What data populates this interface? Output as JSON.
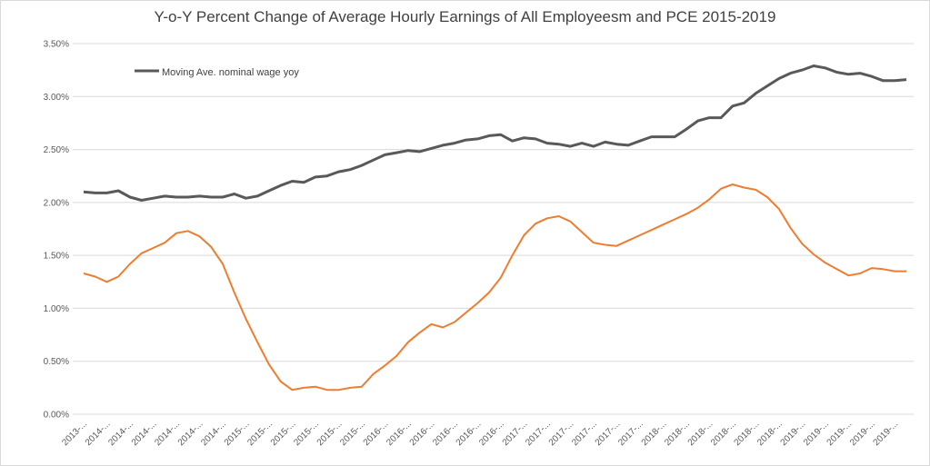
{
  "chart_data": {
    "type": "line",
    "title": "Y-o-Y Percent Change of Average Hourly Earnings of All Employeesm and PCE 2015-2019",
    "xlabel": "",
    "ylabel": "",
    "ylim": [
      0,
      3.5
    ],
    "y_ticks": [
      "0.00%",
      "0.50%",
      "1.00%",
      "1.50%",
      "2.00%",
      "2.50%",
      "3.00%",
      "3.50%"
    ],
    "y_tick_values": [
      0,
      0.5,
      1,
      1.5,
      2,
      2.5,
      3,
      3.5
    ],
    "grid": "horizontal",
    "legend_position": "top-left",
    "x_tick_labels": [
      "2013-...",
      "2014-...",
      "2014-...",
      "2014-...",
      "2014-...",
      "2014-...",
      "2014-...",
      "2015-...",
      "2015-...",
      "2015-...",
      "2015-...",
      "2015-...",
      "2015-...",
      "2016-...",
      "2016-...",
      "2016-...",
      "2016-...",
      "2016-...",
      "2016-...",
      "2017-...",
      "2017-...",
      "2017-...",
      "2017-...",
      "2017-...",
      "2017-...",
      "2018-...",
      "2018-...",
      "2018-...",
      "2018-...",
      "2018-...",
      "2018-...",
      "2019-...",
      "2019-...",
      "2019-...",
      "2019-...",
      "2019-..."
    ],
    "series": [
      {
        "name": "Moving Ave. nominal wage yoy",
        "color": "#595959",
        "values": [
          2.1,
          2.09,
          2.09,
          2.11,
          2.05,
          2.02,
          2.04,
          2.06,
          2.05,
          2.05,
          2.06,
          2.05,
          2.05,
          2.08,
          2.04,
          2.06,
          2.11,
          2.16,
          2.2,
          2.19,
          2.24,
          2.25,
          2.29,
          2.31,
          2.35,
          2.4,
          2.45,
          2.47,
          2.49,
          2.48,
          2.51,
          2.54,
          2.56,
          2.59,
          2.6,
          2.63,
          2.64,
          2.58,
          2.61,
          2.6,
          2.56,
          2.55,
          2.53,
          2.56,
          2.53,
          2.57,
          2.55,
          2.54,
          2.58,
          2.62,
          2.62,
          2.62,
          2.69,
          2.77,
          2.8,
          2.8,
          2.91,
          2.94,
          3.03,
          3.1,
          3.17,
          3.22,
          3.25,
          3.29,
          3.27,
          3.23,
          3.21,
          3.22,
          3.19,
          3.15,
          3.15,
          3.16
        ]
      },
      {
        "color": "#ED7D31",
        "values": [
          1.33,
          1.3,
          1.25,
          1.3,
          1.42,
          1.52,
          1.57,
          1.62,
          1.71,
          1.73,
          1.68,
          1.58,
          1.42,
          1.15,
          0.9,
          0.68,
          0.47,
          0.31,
          0.23,
          0.25,
          0.26,
          0.23,
          0.23,
          0.25,
          0.26,
          0.38,
          0.46,
          0.55,
          0.68,
          0.77,
          0.85,
          0.82,
          0.87,
          0.96,
          1.05,
          1.15,
          1.29,
          1.5,
          1.69,
          1.8,
          1.85,
          1.87,
          1.82,
          1.72,
          1.62,
          1.6,
          1.59,
          1.64,
          1.69,
          1.74,
          1.79,
          1.84,
          1.89,
          1.95,
          2.03,
          2.13,
          2.17,
          2.14,
          2.12,
          2.05,
          1.94,
          1.76,
          1.61,
          1.51,
          1.43,
          1.37,
          1.31,
          1.33,
          1.38,
          1.37,
          1.35,
          1.35
        ]
      }
    ]
  }
}
